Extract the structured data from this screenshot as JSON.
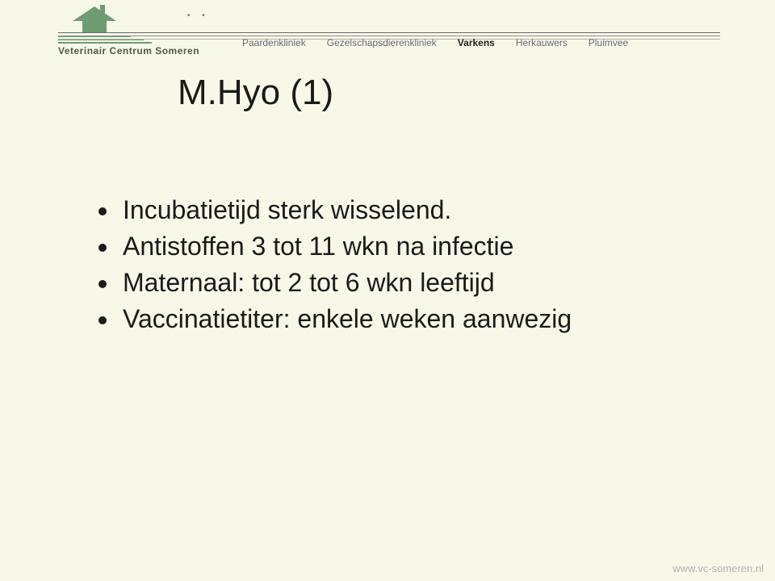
{
  "colors": {
    "page_bg": "#f8f8e8",
    "text": "#1a1a1a",
    "nav_text": "#6a6a7a",
    "nav_active": "#222222",
    "logo_green": "#6f9c72",
    "rule_dark": "#6a6a6a",
    "rule_mid": "#909090",
    "rule_light": "#b0b0b0",
    "footer": "#b0b0b0"
  },
  "logo": {
    "text": "Veterinair Centrum Someren",
    "deco": "•  •"
  },
  "nav": {
    "items": [
      {
        "label": "Paardenkliniek",
        "active": false
      },
      {
        "label": "Gezelschapsdierenkliniek",
        "active": false
      },
      {
        "label": "Varkens",
        "active": true
      },
      {
        "label": "Herkauwers",
        "active": false
      },
      {
        "label": "Pluimvee",
        "active": false
      }
    ]
  },
  "title": "M.Hyo (1)",
  "bullets": [
    "Incubatietijd sterk wisselend.",
    "Antistoffen 3 tot 11 wkn na infectie",
    "Maternaal: tot 2 tot 6 wkn leeftijd",
    "Vaccinatietiter: enkele weken aanwezig"
  ],
  "footer_url": "www.vc-someren.nl"
}
